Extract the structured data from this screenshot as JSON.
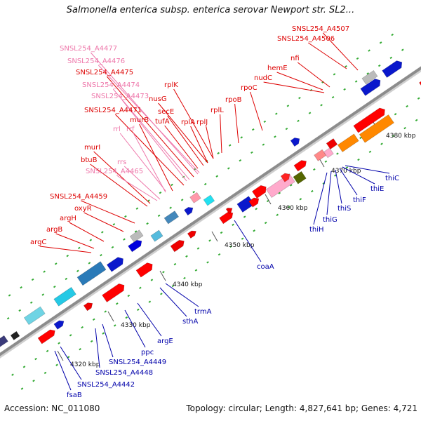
{
  "title": "Salmonella enterica subsp. enterica serovar Newport str. SL2...",
  "footer": {
    "accession": "Accession: NC_011080",
    "topology": "Topology: circular; Length: 4,827,641 bp; Genes: 4,721"
  },
  "colors": {
    "red_label": "#dd0000",
    "pink_label": "#ee77aa",
    "blue_label": "#0000aa",
    "backbone": "#8c8c8c",
    "tick": "#33aa33"
  },
  "scale_labels": [
    "4320 kbp",
    "4330 kbp",
    "4340 kbp",
    "4350 kbp",
    "4360 kbp",
    "4370 kbp",
    "4380 kbp"
  ],
  "upper_labels": [
    {
      "text": "SNSL254_A4507",
      "color": "red"
    },
    {
      "text": "SNSL254_A4506",
      "color": "red"
    },
    {
      "text": "nfi",
      "color": "red"
    },
    {
      "text": "hemE",
      "color": "red"
    },
    {
      "text": "nudC",
      "color": "red"
    },
    {
      "text": "rpoC",
      "color": "red"
    },
    {
      "text": "rpoB",
      "color": "red"
    },
    {
      "text": "rplL",
      "color": "red"
    },
    {
      "text": "rplJ",
      "color": "red"
    },
    {
      "text": "rplA",
      "color": "red"
    },
    {
      "text": "rplK",
      "color": "red"
    },
    {
      "text": "nusG",
      "color": "red"
    },
    {
      "text": "secE",
      "color": "red"
    },
    {
      "text": "tufA",
      "color": "red"
    },
    {
      "text": "SNSL254_A4477",
      "color": "pink"
    },
    {
      "text": "SNSL254_A4476",
      "color": "pink"
    },
    {
      "text": "SNSL254_A4475",
      "color": "red"
    },
    {
      "text": "SNSL254_A4474",
      "color": "pink"
    },
    {
      "text": "SNSL254_A4473",
      "color": "pink"
    },
    {
      "text": "SNSL254_A4471",
      "color": "red"
    },
    {
      "text": "murB",
      "color": "red"
    },
    {
      "text": "rrl",
      "color": "pink"
    },
    {
      "text": "rrf",
      "color": "pink"
    },
    {
      "text": "murI",
      "color": "red"
    },
    {
      "text": "btuB",
      "color": "red"
    },
    {
      "text": "rrs",
      "color": "pink"
    },
    {
      "text": "SNSL254_A4465",
      "color": "pink"
    },
    {
      "text": "SNSL254_A4459",
      "color": "red"
    },
    {
      "text": "oxyR",
      "color": "red"
    },
    {
      "text": "argH",
      "color": "red"
    },
    {
      "text": "argB",
      "color": "red"
    },
    {
      "text": "argC",
      "color": "red"
    }
  ],
  "lower_labels": [
    {
      "text": "thiC",
      "color": "blue"
    },
    {
      "text": "thiE",
      "color": "blue"
    },
    {
      "text": "thiF",
      "color": "blue"
    },
    {
      "text": "thiS",
      "color": "blue"
    },
    {
      "text": "thiG",
      "color": "blue"
    },
    {
      "text": "thiH",
      "color": "blue"
    },
    {
      "text": "coaA",
      "color": "blue"
    },
    {
      "text": "trmA",
      "color": "blue"
    },
    {
      "text": "sthA",
      "color": "blue"
    },
    {
      "text": "argE",
      "color": "blue"
    },
    {
      "text": "ppc",
      "color": "blue"
    },
    {
      "text": "SNSL254_A4449",
      "color": "blue"
    },
    {
      "text": "SNSL254_A4448",
      "color": "blue"
    },
    {
      "text": "SNSL254_A4442",
      "color": "blue"
    },
    {
      "text": "fsaB",
      "color": "blue"
    }
  ]
}
